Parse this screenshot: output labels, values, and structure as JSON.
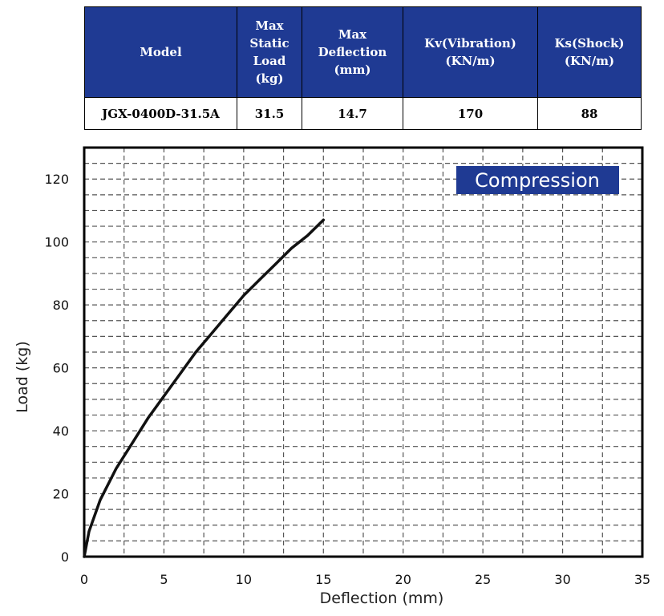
{
  "table": {
    "headers": [
      "Model",
      "Max\nStatic\nLoad\n(kg)",
      "Max\nDeflection\n(mm)",
      "Kv(Vibration)\n(KN/m)",
      "Ks(Shock)\n(KN/m)"
    ],
    "row": [
      "JGX-0400D-31.5A",
      "31.5",
      "14.7",
      "170",
      "88"
    ]
  },
  "colors": {
    "header_bg": "#1f3a93",
    "header_text": "#ffffff",
    "badge_bg": "#1f3a93",
    "curve": "#111111",
    "grid": "#555555"
  },
  "chart_data": {
    "type": "line",
    "title": "Compression",
    "xlabel": "Deflection (mm)",
    "ylabel": "Load (kg)",
    "xlim": [
      0,
      35
    ],
    "ylim": [
      0,
      130
    ],
    "xticks": [
      0,
      5,
      10,
      15,
      20,
      25,
      30,
      35
    ],
    "yticks": [
      0,
      20,
      40,
      60,
      80,
      100,
      120
    ],
    "grid": true,
    "legend": "top-right",
    "series": [
      {
        "x": [
          0,
          0.3,
          1,
          2,
          3,
          4,
          5,
          6,
          7,
          8,
          9,
          10,
          11,
          12,
          13,
          14,
          15
        ],
        "y": [
          0,
          8,
          18,
          28,
          36,
          44,
          51,
          58,
          65,
          71,
          77,
          83,
          88,
          93,
          98,
          102,
          107
        ]
      }
    ]
  }
}
